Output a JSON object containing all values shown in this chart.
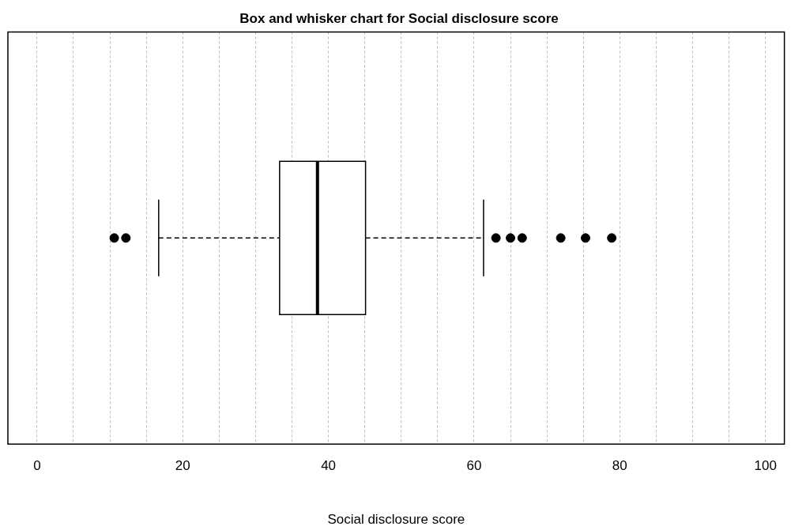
{
  "chart_data": {
    "type": "box",
    "orientation": "horizontal",
    "title": "Box and whisker chart for Social disclosure score",
    "xlabel": "Social disclosure score",
    "categories": [
      null
    ],
    "boxes": [
      {
        "low": 16.7,
        "q1": 33.3,
        "median": 38.5,
        "q3": 45.1,
        "high": 61.3,
        "outliers": [
          10.6,
          12.2,
          63.0,
          65.0,
          66.6,
          71.9,
          75.3,
          78.9
        ]
      }
    ],
    "xlim": [
      -4,
      102.6
    ],
    "xticks": [
      0,
      {
        "value": 5,
        "label": null
      },
      {
        "value": 10,
        "label": null
      },
      {
        "value": 15,
        "label": null
      },
      20,
      {
        "value": 25,
        "label": null
      },
      {
        "value": 30,
        "label": null
      },
      {
        "value": 35,
        "label": null
      },
      40,
      {
        "value": 45,
        "label": null
      },
      {
        "value": 50,
        "label": null
      },
      {
        "value": 55,
        "label": null
      },
      60,
      {
        "value": 65,
        "label": null
      },
      {
        "value": 70,
        "label": null
      },
      {
        "value": 75,
        "label": null
      },
      80,
      {
        "value": 85,
        "label": null
      },
      {
        "value": 90,
        "label": null
      },
      {
        "value": 95,
        "label": null
      },
      100
    ],
    "grid": "x",
    "legend": false,
    "marker": "circle"
  }
}
